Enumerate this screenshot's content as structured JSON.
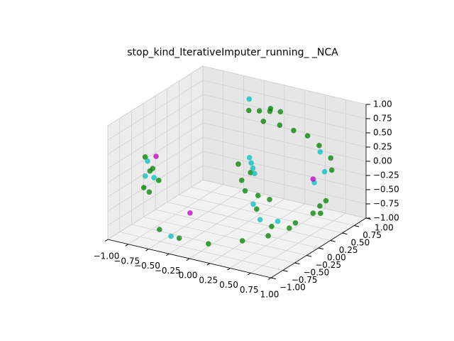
{
  "chart_data": {
    "type": "scatter3d",
    "title": "stop_kind_IterativeImputer_running_ _NCA",
    "xlim": [
      -1,
      1
    ],
    "ylim": [
      -1,
      1
    ],
    "zlim": [
      -1,
      1
    ],
    "xticks": [
      {
        "value": -1,
        "label": "−1.00"
      },
      {
        "value": -0.75,
        "label": "−0.75"
      },
      {
        "value": -0.5,
        "label": "−0.50"
      },
      {
        "value": -0.25,
        "label": "−0.25"
      },
      {
        "value": 0,
        "label": "0.00"
      },
      {
        "value": 0.25,
        "label": "0.25"
      },
      {
        "value": 0.5,
        "label": "0.50"
      },
      {
        "value": 0.75,
        "label": "0.75"
      },
      {
        "value": 1,
        "label": "1.00"
      }
    ],
    "yticks": [
      {
        "value": -1,
        "label": "−1.00"
      },
      {
        "value": -0.75,
        "label": "−0.75"
      },
      {
        "value": -0.5,
        "label": "−0.50"
      },
      {
        "value": -0.25,
        "label": "−0.25"
      },
      {
        "value": 0,
        "label": "0.00"
      },
      {
        "value": 0.25,
        "label": "0.25"
      },
      {
        "value": 0.5,
        "label": "0.50"
      },
      {
        "value": 0.75,
        "label": "0.75"
      },
      {
        "value": 1,
        "label": "1.00"
      }
    ],
    "zticks": [
      {
        "value": -1,
        "label": "−1.00"
      },
      {
        "value": -0.75,
        "label": "−0.75"
      },
      {
        "value": -0.5,
        "label": "−0.50"
      },
      {
        "value": -0.25,
        "label": "−0.25"
      },
      {
        "value": 0,
        "label": "0.00"
      },
      {
        "value": 0.25,
        "label": "0.25"
      },
      {
        "value": 0.5,
        "label": "0.50"
      },
      {
        "value": 0.75,
        "label": "0.75"
      },
      {
        "value": 1,
        "label": "1.00"
      }
    ],
    "grid": true,
    "series": [
      {
        "color": "#008000",
        "x": [
          0.1,
          0.2,
          0.3,
          0.0,
          0.15,
          -0.2,
          0.0,
          0.2,
          0.4,
          0.6,
          0.8,
          0.9,
          -0.95,
          -0.95,
          -0.9,
          -0.9,
          -0.85,
          -0.8,
          -0.1,
          0.0,
          0.1,
          0.2,
          0.05,
          0.3,
          0.4,
          -0.6,
          -0.3,
          0.0,
          0.3,
          0.5,
          0.6,
          0.7,
          0.8,
          0.9,
          0.85,
          0.7,
          0.6
        ],
        "y": [
          0.3,
          0.35,
          0.4,
          0.25,
          0.45,
          0.9,
          0.9,
          0.85,
          0.8,
          0.7,
          0.6,
          0.45,
          -0.3,
          -0.2,
          -0.1,
          -0.3,
          -0.5,
          -0.4,
          0.2,
          0.1,
          0.0,
          0.1,
          0.2,
          -0.1,
          0.0,
          -0.6,
          -0.7,
          -0.6,
          -0.4,
          -0.2,
          0.2,
          0.4,
          0.5,
          0.2,
          0.3,
          -0.1,
          -0.3
        ],
        "z": [
          0.95,
          0.95,
          0.95,
          0.95,
          0.93,
          0.35,
          0.35,
          0.35,
          0.35,
          0.3,
          0.2,
          0.1,
          0.1,
          -0.2,
          -0.4,
          -0.5,
          -0.3,
          0.0,
          0.0,
          -0.2,
          -0.3,
          -0.4,
          -0.1,
          -0.5,
          -0.35,
          -0.9,
          -0.9,
          -0.95,
          -0.9,
          -0.85,
          -0.8,
          -0.7,
          -0.5,
          -0.4,
          -0.6,
          -0.7,
          -0.6
        ]
      },
      {
        "color": "#00bfbf",
        "x": [
          -0.95,
          -0.9,
          -0.92,
          0.0,
          0.05,
          0.1,
          -0.05,
          0.2,
          0.4,
          0.5,
          -0.4,
          -0.2,
          0.6,
          0.9,
          0.7
        ],
        "y": [
          -0.25,
          -0.2,
          -0.35,
          0.3,
          0.25,
          0.2,
          0.35,
          0.0,
          -0.2,
          0.0,
          -0.7,
          0.6,
          0.6,
          0.3,
          0.55
        ],
        "z": [
          0.0,
          -0.3,
          -0.2,
          0.0,
          -0.05,
          -0.1,
          0.05,
          -0.5,
          -0.6,
          -0.7,
          -0.9,
          0.9,
          -0.3,
          0.15,
          0.3
        ]
      },
      {
        "color": "#bf00bf",
        "x": [
          -0.7,
          0.7,
          -0.4
        ],
        "y": [
          -0.5,
          0.4,
          -0.3
        ],
        "z": [
          0.3,
          -0.1,
          -0.7
        ]
      }
    ]
  }
}
